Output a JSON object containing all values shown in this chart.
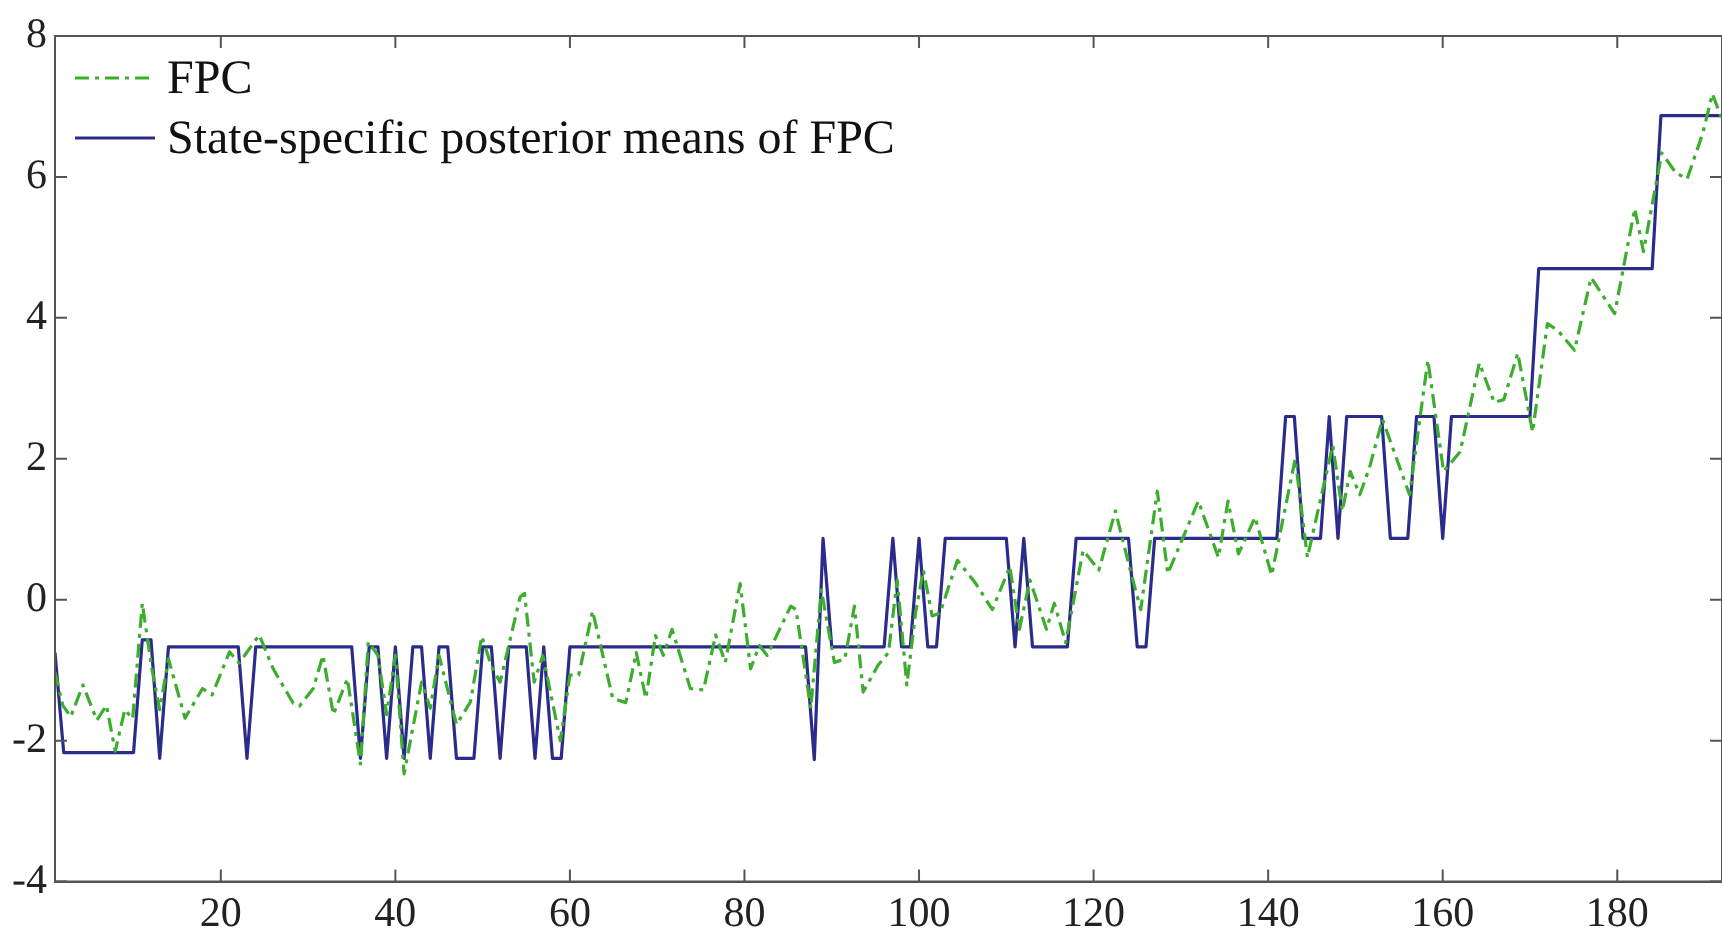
{
  "chart_data": {
    "type": "line",
    "xlim": [
      1,
      192
    ],
    "ylim": [
      -4,
      8
    ],
    "xticks": [
      20,
      40,
      60,
      80,
      100,
      120,
      140,
      160,
      180
    ],
    "yticks": [
      -4,
      -2,
      0,
      2,
      4,
      6,
      8
    ],
    "grid": false,
    "legend": "top left",
    "marker": "none",
    "series": [
      {
        "name": "FPC",
        "color": "#3cad2c",
        "line_style": "dashed",
        "x": [
          1,
          1.9,
          2.8,
          4.2,
          5.8,
          6.9,
          7.9,
          9,
          9.9,
          11,
          12.1,
          13,
          14,
          15.9,
          17.9,
          19,
          21,
          22.1,
          24.4,
          26,
          28.3,
          29,
          30.6,
          31.7,
          32.9,
          34.5,
          36,
          36.9,
          38,
          39,
          40,
          41,
          42,
          43,
          44,
          45,
          47,
          48.6,
          49.9,
          51,
          52,
          54.3,
          54.8,
          55.9,
          56.9,
          58.9,
          60,
          61,
          62.6,
          64.9,
          66.4,
          67.6,
          68.7,
          69.8,
          70.7,
          71.7,
          73.8,
          75.3,
          76.7,
          77.8,
          79.5,
          80.7,
          81.7,
          82.6,
          85.3,
          85.9,
          87.6,
          88.8,
          90.3,
          91.5,
          92.6,
          93.6,
          95.3,
          96.5,
          97.5,
          98.6,
          99.6,
          100.5,
          101.5,
          102.4,
          104.4,
          106.5,
          108.4,
          110.4,
          111.5,
          112.7,
          114.6,
          115.5,
          116.8,
          118.8,
          120.6,
          122.5,
          124.2,
          125.4,
          127.3,
          128.5,
          132,
          134.3,
          135.4,
          136.6,
          138.5,
          140.4,
          143.1,
          144.5,
          147.4,
          148.5,
          149.4,
          150.5,
          151.6,
          153.1,
          156.2,
          158.3,
          160.1,
          162,
          164.2,
          165.9,
          167,
          168.6,
          170.3,
          172,
          173.2,
          175.1,
          177,
          179.7,
          182,
          183,
          185.1,
          186.7,
          188,
          189.8,
          190.9,
          191.9
        ],
        "values": [
          -1.03,
          -1.5,
          -1.66,
          -1.21,
          -1.71,
          -1.5,
          -2.15,
          -1.56,
          -1.69,
          -0.05,
          -0.98,
          -1.56,
          -0.84,
          -1.68,
          -1.26,
          -1.35,
          -0.74,
          -0.9,
          -0.5,
          -0.98,
          -1.47,
          -1.51,
          -1.26,
          -0.79,
          -1.63,
          -1.12,
          -2.33,
          -0.6,
          -0.79,
          -1.63,
          -0.79,
          -2.47,
          -1.82,
          -1.17,
          -1.54,
          -0.79,
          -1.77,
          -1.45,
          -0.52,
          -0.94,
          -1.17,
          0.04,
          0.09,
          -1.17,
          -0.79,
          -2,
          -1.07,
          -1.07,
          -0.16,
          -1.4,
          -1.46,
          -0.75,
          -1.4,
          -0.51,
          -0.79,
          -0.42,
          -1.26,
          -1.28,
          -0.5,
          -0.89,
          0.23,
          -0.98,
          -0.65,
          -0.79,
          -0.09,
          -0.14,
          -1.54,
          0.14,
          -0.89,
          -0.84,
          -0.09,
          -1.31,
          -0.93,
          -0.75,
          0.28,
          -1.21,
          -0.19,
          0.42,
          -0.23,
          -0.19,
          0.56,
          0.23,
          -0.14,
          0.47,
          -0.42,
          0.28,
          -0.42,
          -0.05,
          -0.61,
          0.7,
          0.42,
          1.26,
          0.42,
          -0.14,
          1.54,
          0.37,
          1.4,
          0.6,
          1.4,
          0.65,
          1.17,
          0.35,
          2,
          0.6,
          2.19,
          1.26,
          1.82,
          1.49,
          1.87,
          2.56,
          1.49,
          3.4,
          1.82,
          2.1,
          3.36,
          2.8,
          2.84,
          3.5,
          2.38,
          3.92,
          3.82,
          3.54,
          4.57,
          4.06,
          5.55,
          4.94,
          6.34,
          6.06,
          5.97,
          6.62,
          7.18,
          6.85
        ]
      },
      {
        "name": "State-specific posterior means of FPC",
        "color": "#2b2b8c",
        "line_style": "solid",
        "x": [
          1,
          2,
          10,
          11,
          12,
          13,
          14,
          22,
          23,
          24,
          35,
          36,
          37,
          38,
          39,
          40,
          41,
          42,
          43,
          44,
          45,
          46,
          47,
          49,
          50,
          51,
          52,
          53,
          55,
          56,
          57,
          58,
          59,
          60,
          87,
          88,
          89,
          90,
          96,
          97,
          98,
          99,
          100,
          101,
          102,
          103,
          110,
          111,
          112,
          113,
          117,
          118,
          124,
          125,
          126,
          127,
          141,
          142,
          143,
          144,
          146,
          147,
          148,
          149,
          153,
          154,
          156,
          157,
          159,
          160,
          161,
          170,
          171,
          184,
          185,
          192
        ],
        "values": [
          -0.75,
          -2.17,
          -2.17,
          -0.57,
          -0.57,
          -2.25,
          -0.67,
          -0.67,
          -2.25,
          -0.67,
          -0.67,
          -2.25,
          -0.67,
          -0.67,
          -2.25,
          -0.67,
          -2.25,
          -0.67,
          -0.67,
          -2.25,
          -0.67,
          -0.67,
          -2.25,
          -2.25,
          -0.67,
          -0.67,
          -2.25,
          -0.67,
          -0.67,
          -2.25,
          -0.67,
          -2.25,
          -2.25,
          -0.67,
          -0.67,
          -2.27,
          0.87,
          -0.67,
          -0.67,
          0.87,
          -0.67,
          -0.67,
          0.87,
          -0.67,
          -0.67,
          0.87,
          0.87,
          -0.67,
          0.87,
          -0.67,
          -0.67,
          0.87,
          0.87,
          -0.67,
          -0.67,
          0.87,
          0.87,
          2.6,
          2.6,
          0.87,
          0.87,
          2.6,
          0.87,
          2.6,
          2.6,
          0.87,
          0.87,
          2.6,
          2.6,
          0.87,
          2.6,
          2.6,
          4.7,
          4.7,
          6.87,
          6.87
        ]
      }
    ]
  }
}
